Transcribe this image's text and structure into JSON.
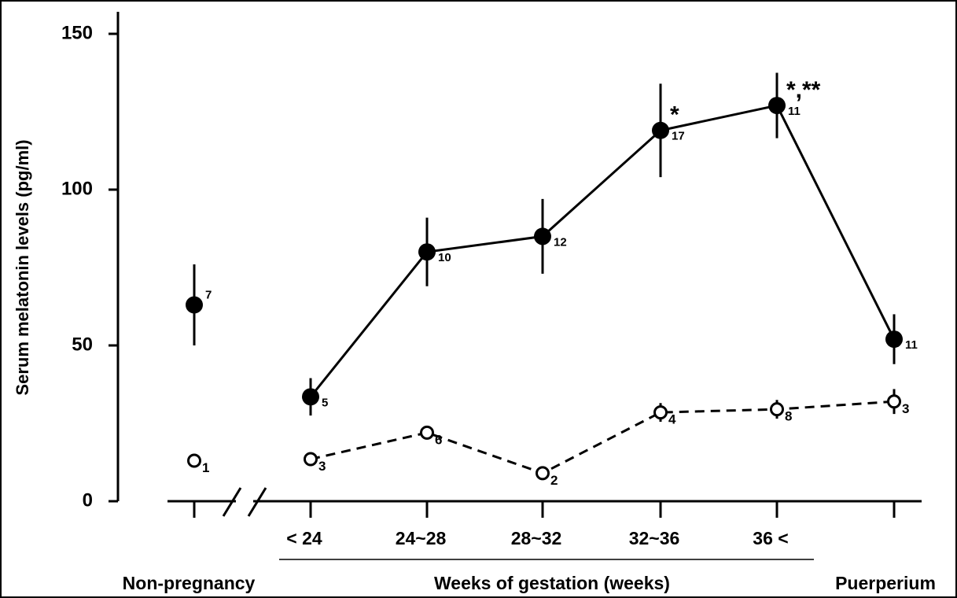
{
  "chart_data": {
    "type": "line",
    "y_label": "Serum melatonin levels (pg/ml)",
    "categories": [
      null,
      "< 24",
      "24~28",
      "28~32",
      "32~36",
      "36 <",
      null
    ],
    "groups": [
      "Non-pregnancy",
      "Weeks of gestation (weeks)",
      "Puerperium"
    ],
    "series": [
      {
        "values": [
          63,
          33.5,
          80,
          85,
          119,
          127,
          52
        ],
        "errors": [
          13,
          6,
          11,
          12,
          15,
          10.5,
          8
        ],
        "n": [
          7,
          5,
          10,
          12,
          17,
          11,
          11
        ],
        "color": "#000000",
        "marker": "filled",
        "dash": false
      },
      {
        "values": [
          13,
          13.5,
          22,
          9,
          28.5,
          29.5,
          32
        ],
        "errors": [
          0,
          2,
          2,
          1,
          3,
          3,
          4
        ],
        "n": [
          1,
          3,
          6,
          2,
          4,
          8,
          3
        ],
        "color": "#000000",
        "marker": "open",
        "dash": true
      }
    ],
    "annotations": [
      {
        "text": "*",
        "series": 0,
        "index": 4
      },
      {
        "text": "*,**",
        "series": 0,
        "index": 5
      }
    ],
    "ylim": [
      0,
      150
    ],
    "yticks": [
      0,
      50,
      100,
      150
    ]
  }
}
